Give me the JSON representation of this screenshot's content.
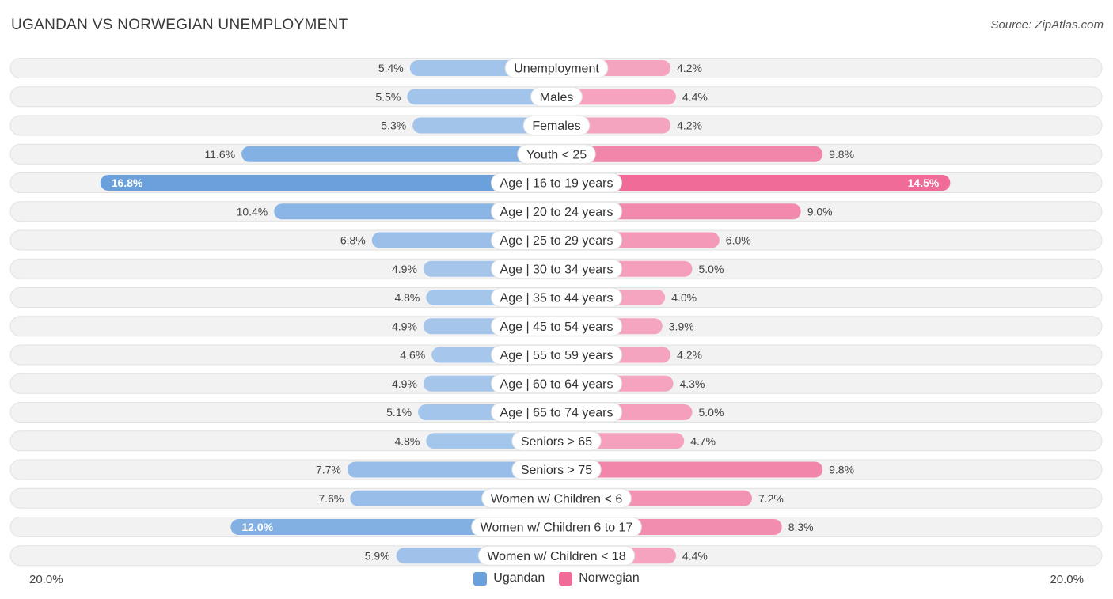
{
  "header": {
    "title": "UGANDAN VS NORWEGIAN UNEMPLOYMENT",
    "source": "Source: ZipAtlas.com"
  },
  "colors": {
    "ugandan": "#6aa1dd",
    "ugandan_light": "#a9c8ec",
    "norwegian": "#f06b98",
    "norwegian_light": "#f5a5c0",
    "row_bg": "#efefef"
  },
  "axis": {
    "left_label": "20.0%",
    "right_label": "20.0%"
  },
  "legend": {
    "ugandan_label": "Ugandan",
    "norwegian_label": "Norwegian"
  },
  "chart_data": {
    "type": "bar",
    "orientation": "horizontal-diverging",
    "title": "UGANDAN VS NORWEGIAN UNEMPLOYMENT",
    "xlim": [
      0,
      20
    ],
    "unit": "%",
    "categories": [
      "Unemployment",
      "Males",
      "Females",
      "Youth < 25",
      "Age | 16 to 19 years",
      "Age | 20 to 24 years",
      "Age | 25 to 29 years",
      "Age | 30 to 34 years",
      "Age | 35 to 44 years",
      "Age | 45 to 54 years",
      "Age | 55 to 59 years",
      "Age | 60 to 64 years",
      "Age | 65 to 74 years",
      "Seniors > 65",
      "Seniors > 75",
      "Women w/ Children < 6",
      "Women w/ Children 6 to 17",
      "Women w/ Children < 18"
    ],
    "series": [
      {
        "name": "Ugandan",
        "values": [
          5.4,
          5.5,
          5.3,
          11.6,
          16.8,
          10.4,
          6.8,
          4.9,
          4.8,
          4.9,
          4.6,
          4.9,
          5.1,
          4.8,
          7.7,
          7.6,
          12.0,
          5.9
        ],
        "labels": [
          "5.4%",
          "5.5%",
          "5.3%",
          "11.6%",
          "16.8%",
          "10.4%",
          "6.8%",
          "4.9%",
          "4.8%",
          "4.9%",
          "4.6%",
          "4.9%",
          "5.1%",
          "4.8%",
          "7.7%",
          "7.6%",
          "12.0%",
          "5.9%"
        ]
      },
      {
        "name": "Norwegian",
        "values": [
          4.2,
          4.4,
          4.2,
          9.8,
          14.5,
          9.0,
          6.0,
          5.0,
          4.0,
          3.9,
          4.2,
          4.3,
          5.0,
          4.7,
          9.8,
          7.2,
          8.3,
          4.4
        ],
        "labels": [
          "4.2%",
          "4.4%",
          "4.2%",
          "9.8%",
          "14.5%",
          "9.0%",
          "6.0%",
          "5.0%",
          "4.0%",
          "3.9%",
          "4.2%",
          "4.3%",
          "5.0%",
          "4.7%",
          "9.8%",
          "7.2%",
          "8.3%",
          "4.4%"
        ]
      }
    ]
  }
}
